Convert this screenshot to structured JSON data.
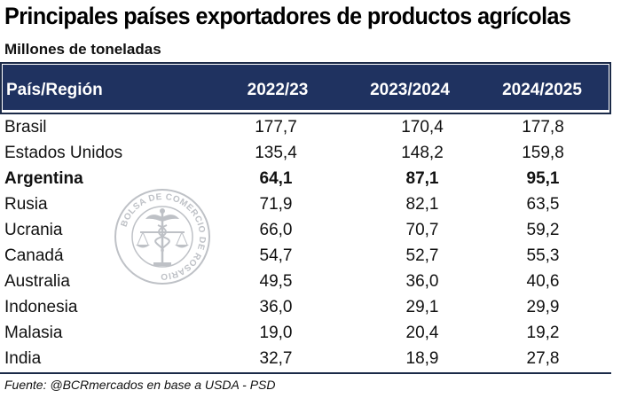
{
  "title": "Principales países exportadores de productos agrícolas",
  "subtitle": "Millones de toneladas",
  "table": {
    "headers": [
      "País/Región",
      "2022/23",
      "2023/2024",
      "2024/2025"
    ],
    "rows": [
      {
        "name": "Brasil",
        "v1": "177,7",
        "v2": "170,4",
        "v3": "177,8",
        "bold": false
      },
      {
        "name": "Estados Unidos",
        "v1": "135,4",
        "v2": "148,2",
        "v3": "159,8",
        "bold": false
      },
      {
        "name": "Argentina",
        "v1": "64,1",
        "v2": "87,1",
        "v3": "95,1",
        "bold": true
      },
      {
        "name": "Rusia",
        "v1": "71,9",
        "v2": "82,1",
        "v3": "63,5",
        "bold": false
      },
      {
        "name": "Ucrania",
        "v1": "66,0",
        "v2": "70,7",
        "v3": "59,2",
        "bold": false
      },
      {
        "name": "Canadá",
        "v1": "54,7",
        "v2": "52,7",
        "v3": "55,3",
        "bold": false
      },
      {
        "name": "Australia",
        "v1": "49,5",
        "v2": "36,0",
        "v3": "40,6",
        "bold": false
      },
      {
        "name": "Indonesia",
        "v1": "36,0",
        "v2": "29,1",
        "v3": "29,9",
        "bold": false
      },
      {
        "name": "Malasia",
        "v1": "19,0",
        "v2": "20,4",
        "v3": "19,2",
        "bold": false
      },
      {
        "name": "India",
        "v1": "32,7",
        "v2": "18,9",
        "v3": "27,8",
        "bold": false
      }
    ]
  },
  "source": "Fuente: @BCRmercados en base a USDA - PSD",
  "watermark": {
    "text": "BOLSA DE COMERCIO DE ROSARIO",
    "icon": "scales-caduceus-seal-icon",
    "color": "#8a8f99"
  },
  "colors": {
    "header_bg": "#1f3260",
    "header_text": "#ffffff",
    "border": "#1b2a48"
  }
}
